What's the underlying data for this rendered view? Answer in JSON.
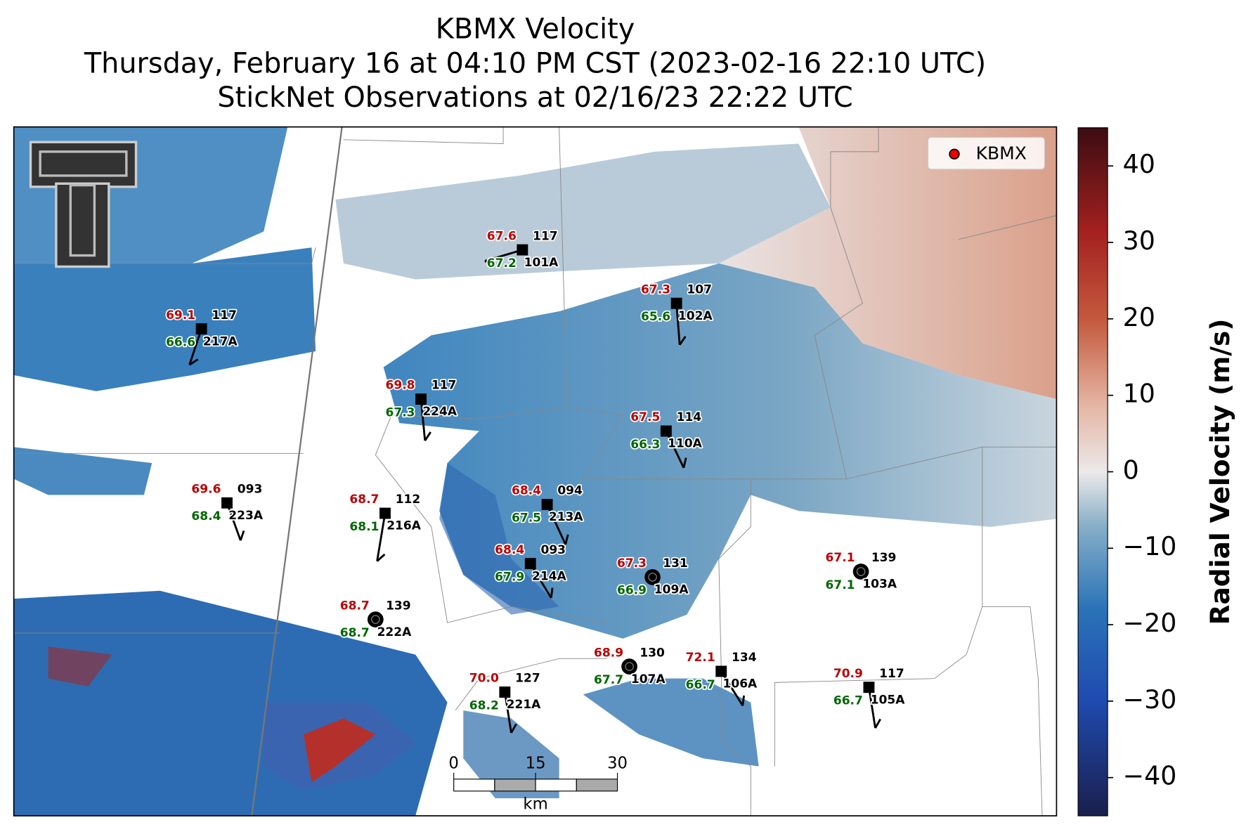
{
  "title": {
    "lines": [
      "KBMX Velocity",
      "Thursday, February 16 at 04:10 PM CST (2023-02-16 22:10 UTC)",
      "StickNet Observations at 02/16/23 22:22 UTC"
    ]
  },
  "legend": {
    "label": "KBMX"
  },
  "stations": [
    {
      "temperature": "67.6",
      "dewpoint": "67.2",
      "reading": "117",
      "id": "101A"
    },
    {
      "temperature": "67.3",
      "dewpoint": "65.6",
      "reading": "107",
      "id": "102A"
    },
    {
      "temperature": "69.1",
      "dewpoint": "66.6",
      "reading": "117",
      "id": "217A"
    },
    {
      "temperature": "69.8",
      "dewpoint": "67.3",
      "reading": "117",
      "id": "224A"
    },
    {
      "temperature": "67.5",
      "dewpoint": "66.3",
      "reading": "114",
      "id": "110A"
    },
    {
      "temperature": "69.6",
      "dewpoint": "68.4",
      "reading": "093",
      "id": "223A"
    },
    {
      "temperature": "68.7",
      "dewpoint": "68.1",
      "reading": "112",
      "id": "216A"
    },
    {
      "temperature": "68.4",
      "dewpoint": "67.5",
      "reading": "094",
      "id": "213A"
    },
    {
      "temperature": "68.4",
      "dewpoint": "67.9",
      "reading": "093",
      "id": "214A"
    },
    {
      "temperature": "67.3",
      "dewpoint": "66.9",
      "reading": "131",
      "id": "109A"
    },
    {
      "temperature": "67.1",
      "dewpoint": "67.1",
      "reading": "139",
      "id": "103A"
    },
    {
      "temperature": "68.7",
      "dewpoint": "68.7",
      "reading": "139",
      "id": "222A"
    },
    {
      "temperature": "68.9",
      "dewpoint": "67.7",
      "reading": "130",
      "id": "107A"
    },
    {
      "temperature": "72.1",
      "dewpoint": "66.7",
      "reading": "134",
      "id": "106A"
    },
    {
      "temperature": "70.0",
      "dewpoint": "68.2",
      "reading": "127",
      "id": "221A"
    },
    {
      "temperature": "70.9",
      "dewpoint": "66.7",
      "reading": "117",
      "id": "105A"
    }
  ],
  "scale_bar": {
    "ticks": [
      0,
      15,
      30
    ],
    "unit": "km"
  },
  "colorbar": {
    "label": "Radial Velocity (m/s)",
    "lim": [
      -45,
      45
    ],
    "ticks": [
      40,
      30,
      20,
      10,
      0,
      {
        "value": -10,
        "label": "−10"
      },
      {
        "value": -20,
        "label": "−20"
      },
      {
        "value": -30,
        "label": "−30"
      },
      {
        "value": -40,
        "label": "−40"
      }
    ]
  }
}
